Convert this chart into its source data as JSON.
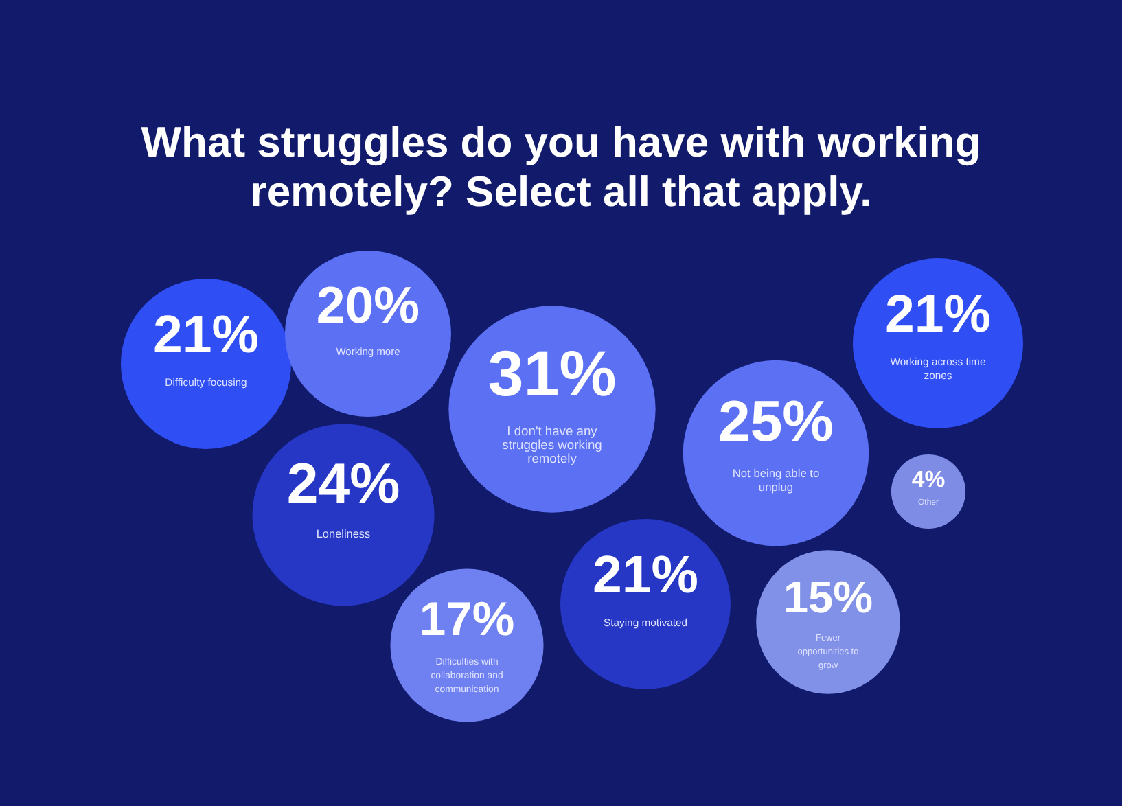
{
  "chart_data": {
    "type": "other",
    "title": "What struggles do you have with working remotely? Select all that apply.",
    "categories": [
      "Difficulty focusing",
      "Working more",
      "I don't have any struggles working remotely",
      "Not being able to unplug",
      "Working across time zones",
      "Other",
      "Loneliness",
      "Difficulties with collaboration and communication",
      "Staying motivated",
      "Fewer opportunities to grow"
    ],
    "values": [
      21,
      20,
      31,
      25,
      21,
      4,
      24,
      17,
      21,
      15
    ],
    "value_labels": [
      "21%",
      "20%",
      "31%",
      "25%",
      "21%",
      "4%",
      "24%",
      "17%",
      "21%",
      "15%"
    ],
    "colors": [
      "#2f4ff5",
      "#5b70f2",
      "#5b70f2",
      "#5b70f2",
      "#2f4ff5",
      "#7f8ce6",
      "#2537c4",
      "#6f80f0",
      "#2537c4",
      "#8291e8"
    ]
  }
}
